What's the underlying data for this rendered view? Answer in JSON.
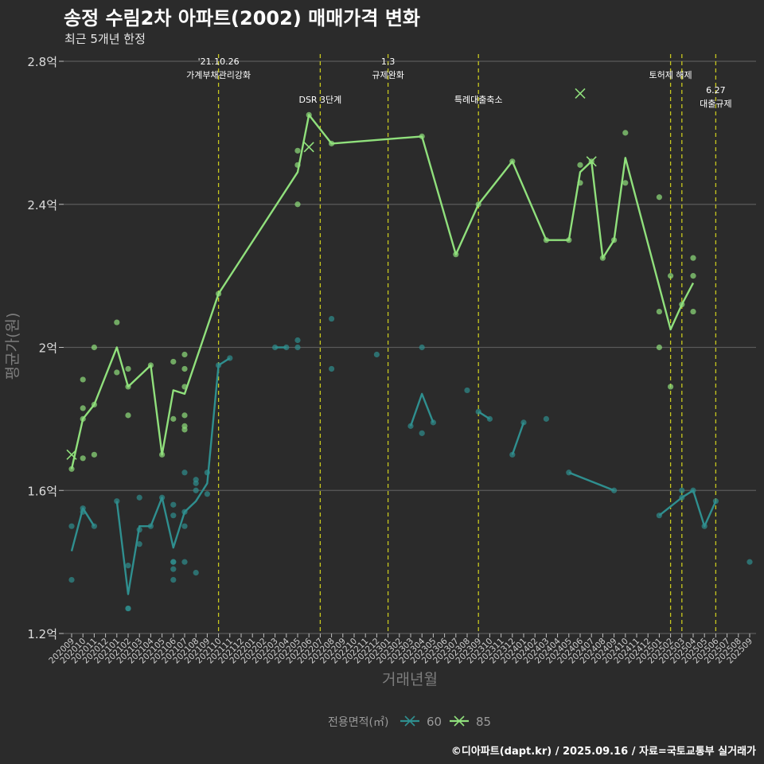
{
  "chart_data": {
    "type": "line",
    "title": "송정 수림2차 아파트(2002) 매매가격 변화",
    "subtitle": "최근 5개년 한정",
    "xlabel": "거래년월",
    "ylabel": "평균가(원)",
    "caption": "©디아파트(dapt.kr) / 2025.09.16 / 자료=국토교통부 실거래가",
    "ylim": [
      1.2,
      2.8
    ],
    "y_ticks": [
      {
        "value": 1.2,
        "label": "1.2억"
      },
      {
        "value": 1.6,
        "label": "1.6억"
      },
      {
        "value": 2.0,
        "label": "2억"
      },
      {
        "value": 2.4,
        "label": "2.4억"
      },
      {
        "value": 2.8,
        "label": "2.8억"
      }
    ],
    "months": [
      "202009",
      "202010",
      "202011",
      "202012",
      "202101",
      "202102",
      "202103",
      "202104",
      "202105",
      "202106",
      "202107",
      "202108",
      "202109",
      "202110",
      "202111",
      "202112",
      "202201",
      "202202",
      "202203",
      "202204",
      "202205",
      "202206",
      "202207",
      "202208",
      "202209",
      "202210",
      "202211",
      "202212",
      "202301",
      "202302",
      "202303",
      "202304",
      "202305",
      "202306",
      "202307",
      "202308",
      "202309",
      "202310",
      "202311",
      "202312",
      "202401",
      "202402",
      "202403",
      "202404",
      "202405",
      "202406",
      "202407",
      "202408",
      "202409",
      "202410",
      "202411",
      "202412",
      "202501",
      "202502",
      "202503",
      "202504",
      "202505",
      "202506",
      "202507",
      "202508",
      "202509"
    ],
    "legend": {
      "title": "전용면적(㎡)",
      "entries": [
        {
          "name": "60",
          "color": "#2f8f8f"
        },
        {
          "name": "85",
          "color": "#90e07c"
        }
      ]
    },
    "events": [
      {
        "month": "202110",
        "label": "'21.10.26\n가계부채관리강화",
        "level": 0
      },
      {
        "month": "202207",
        "label": "DSR 3단계",
        "level": 1
      },
      {
        "month": "202301",
        "label": "1.3\n규제완화",
        "level": 0
      },
      {
        "month": "202309",
        "label": "특례대출축소",
        "level": 1
      },
      {
        "month": "202502",
        "label": "토허제 해제",
        "level": 0
      },
      {
        "month": "202503",
        "label": "",
        "level": 0
      },
      {
        "month": "202506",
        "label": "6.27\n대출규제",
        "level": 2
      }
    ],
    "series": [
      {
        "name": "60",
        "color": "#2f8f8f",
        "line_segments": [
          [
            [
              "202009",
              1.43
            ],
            [
              "202010",
              1.55
            ],
            [
              "202011",
              1.5
            ]
          ],
          [
            [
              "202101",
              1.57
            ],
            [
              "202102",
              1.31
            ],
            [
              "202103",
              1.5
            ],
            [
              "202104",
              1.5
            ],
            [
              "202105",
              1.58
            ],
            [
              "202106",
              1.44
            ],
            [
              "202107",
              1.54
            ],
            [
              "202108",
              1.57
            ],
            [
              "202109",
              1.62
            ],
            [
              "202110",
              1.95
            ],
            [
              "202111",
              1.97
            ]
          ],
          [
            [
              "202203",
              2.0
            ],
            [
              "202204",
              2.0
            ]
          ],
          [
            [
              "202303",
              1.78
            ],
            [
              "202304",
              1.87
            ],
            [
              "202305",
              1.79
            ]
          ],
          [
            [
              "202309",
              1.82
            ],
            [
              "202310",
              1.8
            ]
          ],
          [
            [
              "202312",
              1.7
            ],
            [
              "202401",
              1.79
            ]
          ],
          [
            [
              "202405",
              1.65
            ],
            [
              "202409",
              1.6
            ]
          ],
          [
            [
              "202501",
              1.53
            ],
            [
              "202503",
              1.58
            ],
            [
              "202504",
              1.6
            ],
            [
              "202505",
              1.5
            ],
            [
              "202506",
              1.57
            ]
          ]
        ],
        "points": [
          [
            "202009",
            1.5
          ],
          [
            "202009",
            1.35
          ],
          [
            "202010",
            1.55
          ],
          [
            "202010",
            1.54
          ],
          [
            "202011",
            1.5
          ],
          [
            "202101",
            1.57
          ],
          [
            "202102",
            1.39
          ],
          [
            "202102",
            1.27
          ],
          [
            "202102",
            1.27
          ],
          [
            "202103",
            1.58
          ],
          [
            "202103",
            1.49
          ],
          [
            "202103",
            1.45
          ],
          [
            "202104",
            1.5
          ],
          [
            "202105",
            1.58
          ],
          [
            "202106",
            1.56
          ],
          [
            "202106",
            1.53
          ],
          [
            "202106",
            1.4
          ],
          [
            "202106",
            1.4
          ],
          [
            "202106",
            1.38
          ],
          [
            "202106",
            1.35
          ],
          [
            "202107",
            1.65
          ],
          [
            "202107",
            1.54
          ],
          [
            "202107",
            1.5
          ],
          [
            "202107",
            1.4
          ],
          [
            "202108",
            1.63
          ],
          [
            "202108",
            1.62
          ],
          [
            "202108",
            1.6
          ],
          [
            "202108",
            1.37
          ],
          [
            "202109",
            1.65
          ],
          [
            "202109",
            1.59
          ],
          [
            "202110",
            1.95
          ],
          [
            "202111",
            1.97
          ],
          [
            "202203",
            2.0
          ],
          [
            "202204",
            2.0
          ],
          [
            "202205",
            2.02
          ],
          [
            "202205",
            2.0
          ],
          [
            "202208",
            2.08
          ],
          [
            "202208",
            1.94
          ],
          [
            "202212",
            1.98
          ],
          [
            "202303",
            1.78
          ],
          [
            "202304",
            2.0
          ],
          [
            "202304",
            1.76
          ],
          [
            "202305",
            1.79
          ],
          [
            "202308",
            1.88
          ],
          [
            "202309",
            1.82
          ],
          [
            "202310",
            1.8
          ],
          [
            "202312",
            1.7
          ],
          [
            "202401",
            1.79
          ],
          [
            "202403",
            1.8
          ],
          [
            "202405",
            1.65
          ],
          [
            "202409",
            1.6
          ],
          [
            "202501",
            1.53
          ],
          [
            "202503",
            1.6
          ],
          [
            "202503",
            1.58
          ],
          [
            "202504",
            1.6
          ],
          [
            "202505",
            1.5
          ],
          [
            "202506",
            1.57
          ],
          [
            "202509",
            1.4
          ]
        ],
        "cancelled": []
      },
      {
        "name": "85",
        "color": "#90e07c",
        "line_segments": [
          [
            [
              "202009",
              1.66
            ],
            [
              "202010",
              1.8
            ],
            [
              "202011",
              1.84
            ],
            [
              "202101",
              2.0
            ],
            [
              "202102",
              1.89
            ],
            [
              "202104",
              1.95
            ],
            [
              "202105",
              1.7
            ],
            [
              "202106",
              1.88
            ],
            [
              "202107",
              1.87
            ],
            [
              "202110",
              2.15
            ],
            [
              "202205",
              2.49
            ],
            [
              "202206",
              2.65
            ],
            [
              "202208",
              2.57
            ],
            [
              "202304",
              2.59
            ],
            [
              "202307",
              2.26
            ],
            [
              "202309",
              2.4
            ],
            [
              "202312",
              2.52
            ],
            [
              "202403",
              2.3
            ],
            [
              "202405",
              2.3
            ],
            [
              "202406",
              2.49
            ],
            [
              "202407",
              2.52
            ],
            [
              "202408",
              2.25
            ],
            [
              "202409",
              2.3
            ],
            [
              "202410",
              2.53
            ],
            [
              "202502",
              2.05
            ],
            [
              "202503",
              2.12
            ],
            [
              "202504",
              2.18
            ]
          ]
        ],
        "points": [
          [
            "202009",
            1.66
          ],
          [
            "202010",
            1.91
          ],
          [
            "202010",
            1.83
          ],
          [
            "202010",
            1.8
          ],
          [
            "202010",
            1.69
          ],
          [
            "202011",
            2.0
          ],
          [
            "202011",
            1.84
          ],
          [
            "202011",
            1.7
          ],
          [
            "202101",
            2.07
          ],
          [
            "202101",
            1.93
          ],
          [
            "202102",
            1.94
          ],
          [
            "202102",
            1.89
          ],
          [
            "202102",
            1.81
          ],
          [
            "202104",
            1.95
          ],
          [
            "202105",
            1.7
          ],
          [
            "202106",
            1.96
          ],
          [
            "202106",
            1.8
          ],
          [
            "202107",
            1.98
          ],
          [
            "202107",
            1.94
          ],
          [
            "202107",
            1.89
          ],
          [
            "202107",
            1.81
          ],
          [
            "202107",
            1.78
          ],
          [
            "202107",
            1.77
          ],
          [
            "202110",
            2.15
          ],
          [
            "202205",
            2.55
          ],
          [
            "202205",
            2.51
          ],
          [
            "202205",
            2.4
          ],
          [
            "202206",
            2.65
          ],
          [
            "202208",
            2.57
          ],
          [
            "202304",
            2.59
          ],
          [
            "202307",
            2.26
          ],
          [
            "202309",
            2.4
          ],
          [
            "202312",
            2.52
          ],
          [
            "202403",
            2.3
          ],
          [
            "202405",
            2.3
          ],
          [
            "202406",
            2.51
          ],
          [
            "202406",
            2.46
          ],
          [
            "202407",
            2.52
          ],
          [
            "202408",
            2.25
          ],
          [
            "202409",
            2.3
          ],
          [
            "202410",
            2.6
          ],
          [
            "202410",
            2.46
          ],
          [
            "202501",
            2.42
          ],
          [
            "202501",
            2.1
          ],
          [
            "202501",
            2.0
          ],
          [
            "202502",
            2.2
          ],
          [
            "202502",
            1.89
          ],
          [
            "202503",
            2.12
          ],
          [
            "202504",
            2.25
          ],
          [
            "202504",
            2.2
          ],
          [
            "202504",
            2.1
          ]
        ],
        "cancelled": [
          [
            "202009",
            1.7
          ],
          [
            "202206",
            2.56
          ],
          [
            "202406",
            2.71
          ],
          [
            "202407",
            2.52
          ]
        ]
      }
    ]
  }
}
